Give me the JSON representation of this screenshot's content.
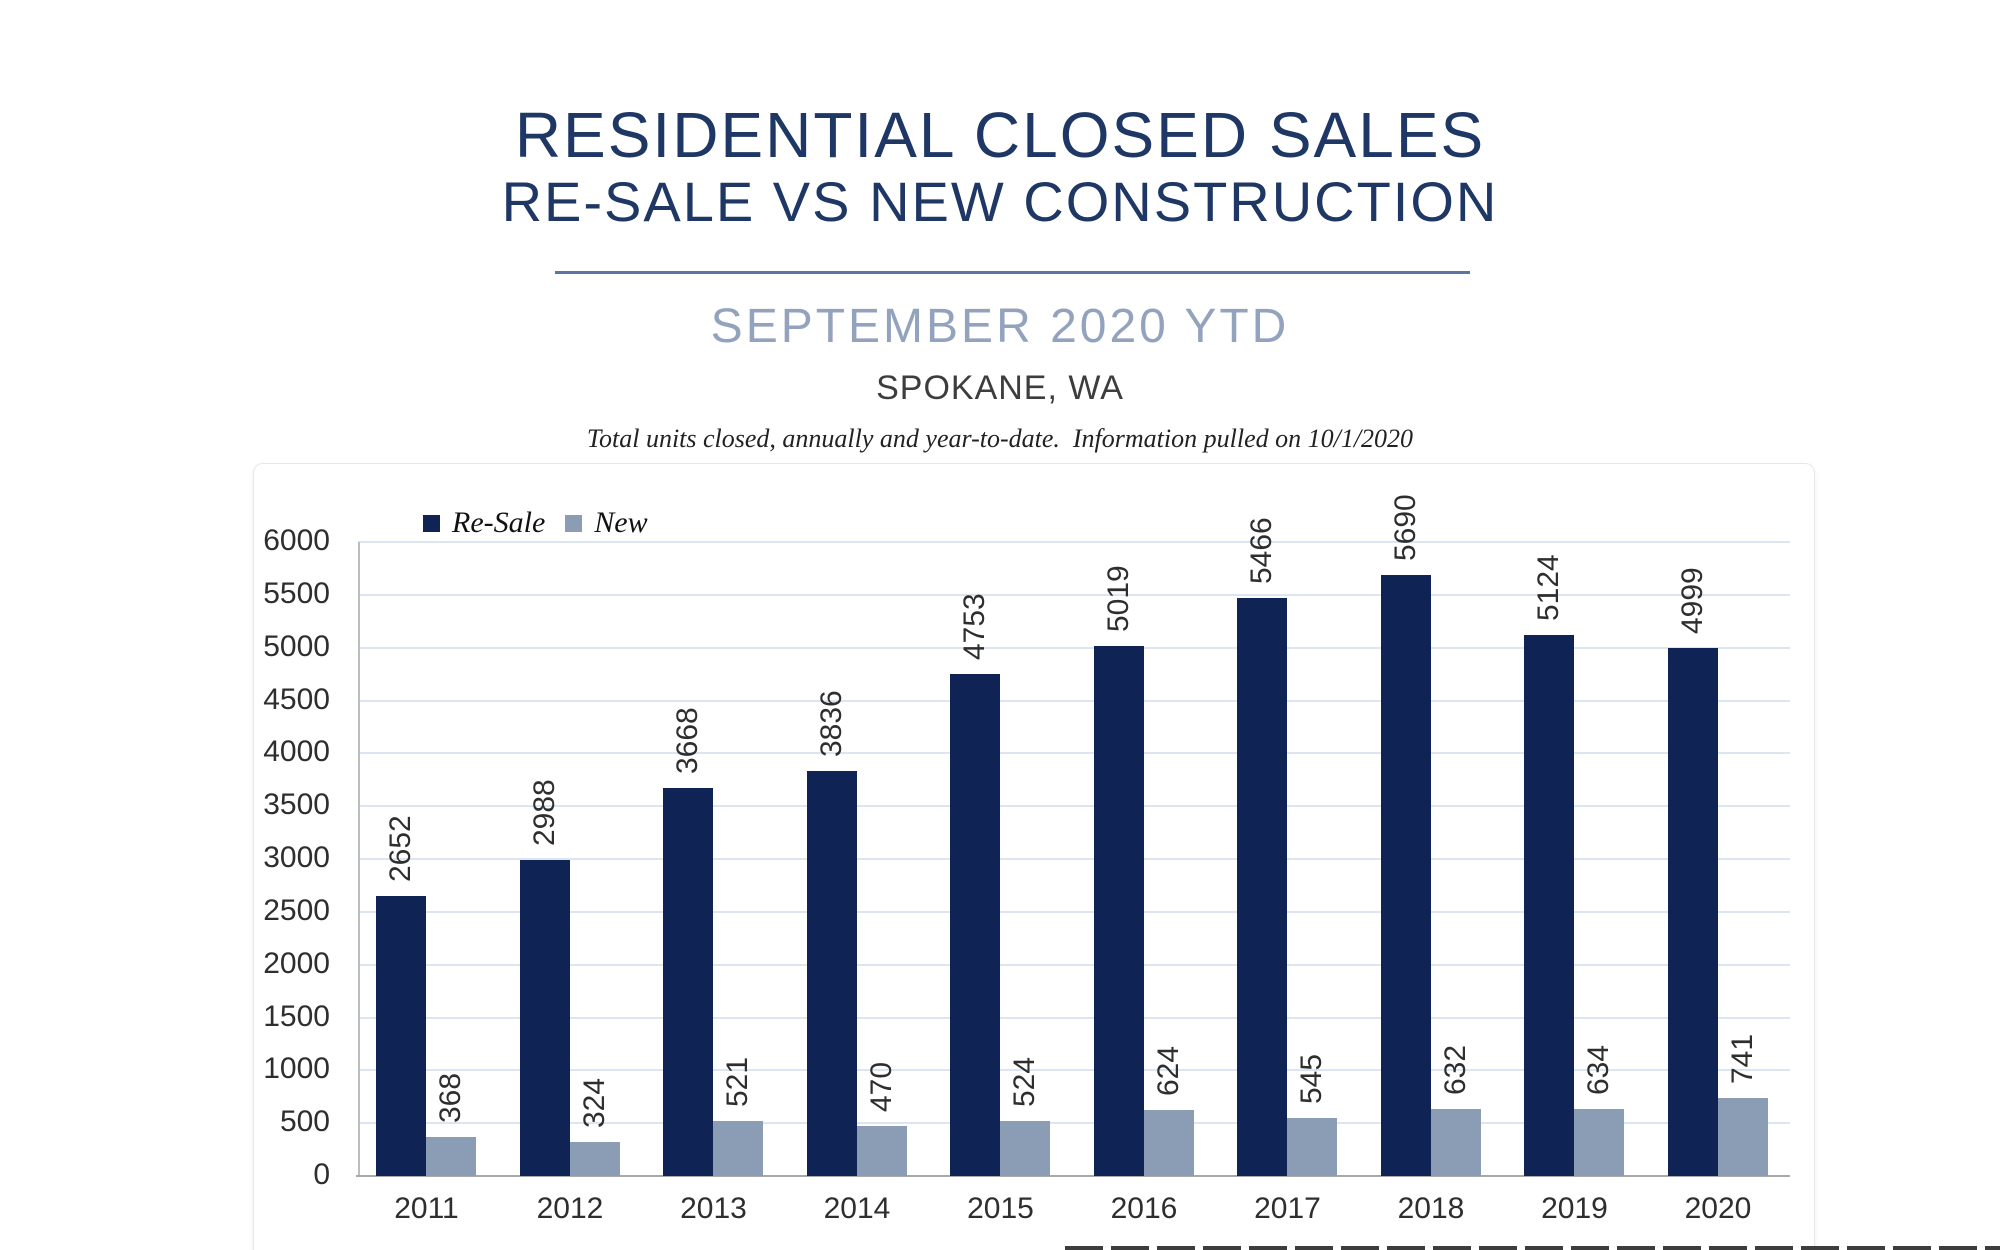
{
  "header": {
    "title_line1": "RESIDENTIAL CLOSED SALES",
    "title_line2": "RE-SALE VS NEW CONSTRUCTION",
    "subtitle": "SEPTEMBER 2020 YTD",
    "location": "SPOKANE, WA",
    "note": "Total units closed, annually and year-to-date.  Information pulled on 10/1/2020"
  },
  "colors": {
    "title_navy": "#1e3765",
    "subtitle_slate": "#93a3be",
    "divider": "#5c76a2",
    "resale_bar": "#0f2355",
    "new_bar": "#8b9cb5",
    "gridline": "#dce6f2",
    "axis_gray": "#a9a9a9",
    "label_text": "#2e2e2e"
  },
  "chart_data": {
    "type": "bar",
    "title": "Residential Closed Sales, Re-Sale vs New Construction, September 2020 YTD, Spokane WA",
    "categories": [
      "2011",
      "2012",
      "2013",
      "2014",
      "2015",
      "2016",
      "2017",
      "2018",
      "2019",
      "2020"
    ],
    "series": [
      {
        "name": "Re-Sale",
        "color": "#0f2355",
        "values": [
          2652,
          2988,
          3668,
          3836,
          4753,
          5019,
          5466,
          5690,
          5124,
          4999
        ]
      },
      {
        "name": "New",
        "color": "#8b9cb5",
        "values": [
          368,
          324,
          521,
          470,
          524,
          624,
          545,
          632,
          634,
          741
        ]
      }
    ],
    "xlabel": "",
    "ylabel": "",
    "ylim": [
      0,
      6000
    ],
    "ytick_step": 500,
    "grid": true,
    "legend_position": "top-left",
    "value_labels": "rotated-90-above-bars"
  }
}
